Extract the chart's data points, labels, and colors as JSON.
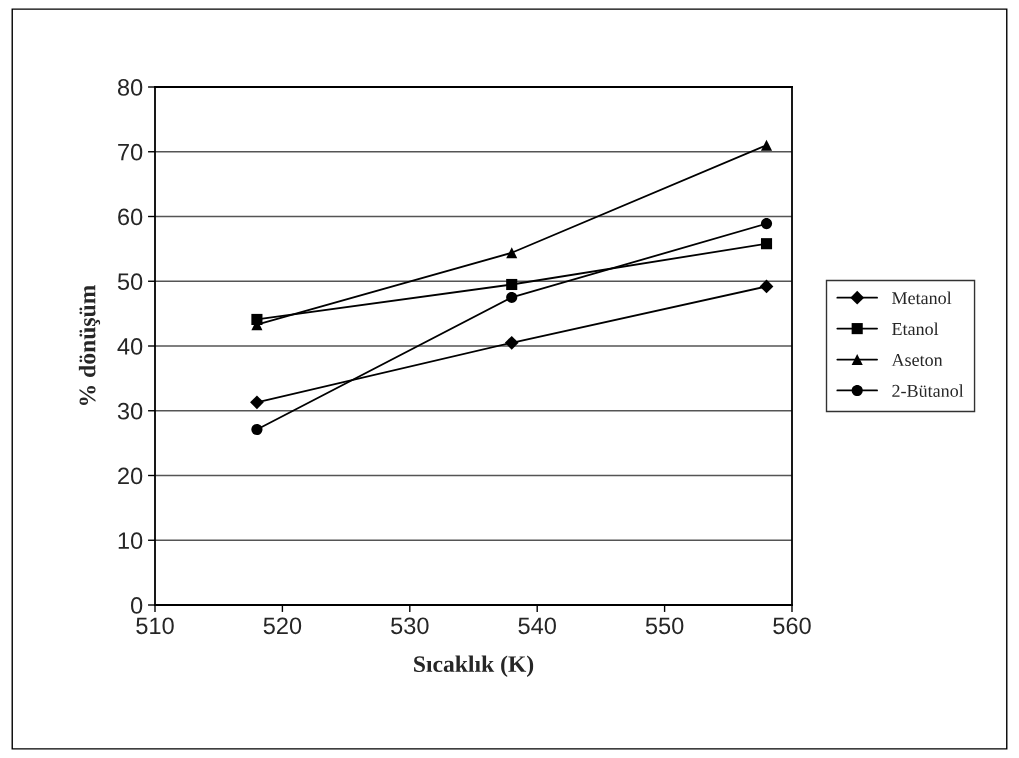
{
  "chart_data": {
    "type": "line",
    "xlabel": "Sıcaklık (K)",
    "ylabel": "% dönüşüm",
    "xlim": [
      510,
      560
    ],
    "xticks": [
      510,
      520,
      530,
      540,
      550,
      560
    ],
    "ylim": [
      0,
      80
    ],
    "yticks": [
      0,
      10,
      20,
      30,
      40,
      50,
      60,
      70,
      80
    ],
    "grid": "y",
    "legend": "right",
    "line_style": "solid",
    "series": [
      {
        "name": "Metanol",
        "color": "#000000",
        "marker": "diamond",
        "x": [
          518,
          538,
          558
        ],
        "values": [
          31.3,
          40.5,
          49.2
        ]
      },
      {
        "name": "Etanol",
        "color": "#000000",
        "marker": "square",
        "x": [
          518,
          538,
          558
        ],
        "values": [
          44.1,
          49.5,
          55.8
        ]
      },
      {
        "name": "Aseton",
        "color": "#000000",
        "marker": "triangle",
        "x": [
          518,
          538,
          558
        ],
        "values": [
          43.3,
          54.4,
          71
        ]
      },
      {
        "name": "2-Bütanol",
        "color": "#000000",
        "marker": "circle",
        "x": [
          518,
          538,
          558
        ],
        "values": [
          27.1,
          47.5,
          58.9
        ]
      }
    ]
  }
}
